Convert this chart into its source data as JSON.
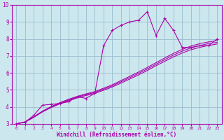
{
  "xlabel": "Windchill (Refroidissement éolien,°C)",
  "background_color": "#cce8ee",
  "line_color": "#aa00aa",
  "grid_color": "#99bbcc",
  "xlim": [
    -0.5,
    23.5
  ],
  "ylim": [
    3,
    10
  ],
  "x_ticks": [
    0,
    1,
    2,
    3,
    4,
    5,
    6,
    7,
    8,
    9,
    10,
    11,
    12,
    13,
    14,
    15,
    16,
    17,
    18,
    19,
    20,
    21,
    22,
    23
  ],
  "y_ticks": [
    3,
    4,
    5,
    6,
    7,
    8,
    9,
    10
  ],
  "zigzag_x": [
    0,
    1,
    2,
    3,
    4,
    5,
    6,
    7,
    8,
    9,
    10,
    11,
    12,
    13,
    14,
    15,
    16,
    17,
    18,
    19,
    20,
    21,
    22,
    23
  ],
  "zigzag_y": [
    3.0,
    3.1,
    3.5,
    4.1,
    4.15,
    4.2,
    4.3,
    4.6,
    4.5,
    4.8,
    7.6,
    8.5,
    8.8,
    9.0,
    9.1,
    9.6,
    8.2,
    9.2,
    8.5,
    7.5,
    7.5,
    7.6,
    7.6,
    8.0
  ],
  "ref_line1_x": [
    0,
    1,
    2,
    3,
    4,
    5,
    6,
    7,
    8,
    9,
    10,
    11,
    12,
    13,
    14,
    15,
    16,
    17,
    18,
    19,
    20,
    21,
    22,
    23
  ],
  "ref_line1_y": [
    3.0,
    3.12,
    3.42,
    3.75,
    4.02,
    4.25,
    4.45,
    4.62,
    4.77,
    4.9,
    5.1,
    5.3,
    5.55,
    5.8,
    6.05,
    6.32,
    6.6,
    6.88,
    7.15,
    7.38,
    7.58,
    7.72,
    7.82,
    7.9
  ],
  "ref_line2_x": [
    0,
    1,
    2,
    3,
    4,
    5,
    6,
    7,
    8,
    9,
    10,
    11,
    12,
    13,
    14,
    15,
    16,
    17,
    18,
    19,
    20,
    21,
    22,
    23
  ],
  "ref_line2_y": [
    3.0,
    3.1,
    3.38,
    3.7,
    3.96,
    4.18,
    4.37,
    4.53,
    4.67,
    4.79,
    4.98,
    5.17,
    5.4,
    5.64,
    5.88,
    6.14,
    6.42,
    6.68,
    6.94,
    7.17,
    7.36,
    7.5,
    7.61,
    7.7
  ],
  "ref_line3_x": [
    0,
    1,
    2,
    3,
    4,
    5,
    6,
    7,
    8,
    9,
    10,
    11,
    12,
    13,
    14,
    15,
    16,
    17,
    18,
    19,
    20,
    21,
    22,
    23
  ],
  "ref_line3_y": [
    3.0,
    3.11,
    3.4,
    3.73,
    3.99,
    4.22,
    4.41,
    4.58,
    4.72,
    4.85,
    5.04,
    5.24,
    5.48,
    5.72,
    5.97,
    6.23,
    6.51,
    6.78,
    7.05,
    7.28,
    7.47,
    7.61,
    7.72,
    7.8
  ]
}
